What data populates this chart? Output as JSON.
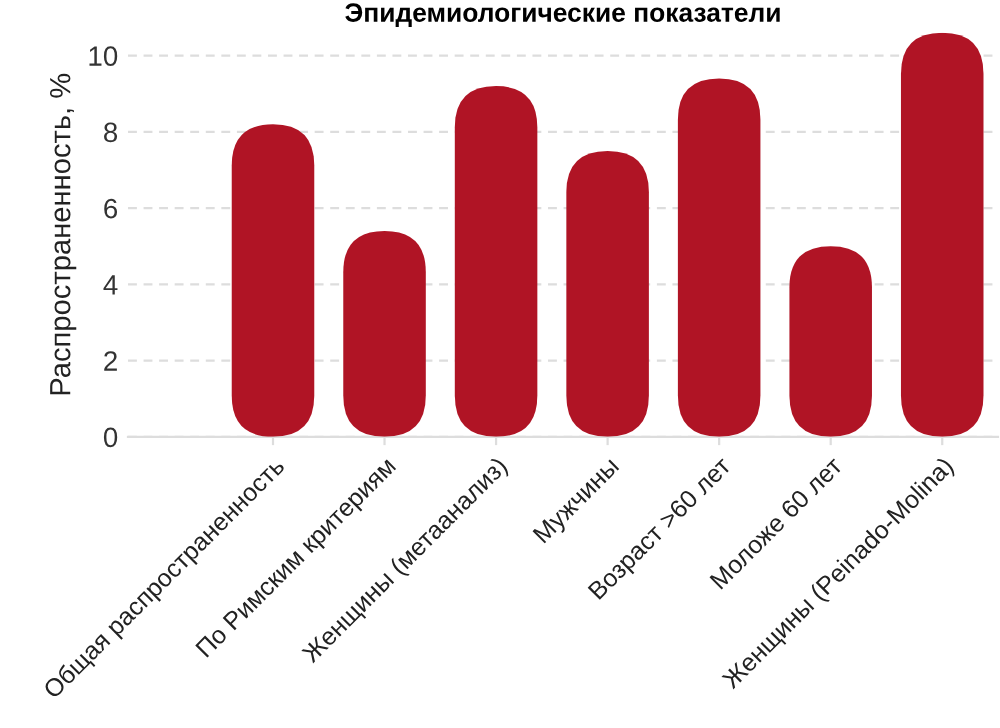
{
  "chart_data": {
    "type": "bar",
    "title": "Эпидемиологические показатели",
    "ylabel": "Распространенность, %",
    "categories": [
      "Общая распространенность",
      "По Римским критериям",
      "Женщины (метаанализ)",
      "Мужчины",
      "Возраст >60 лет",
      "Моложе 60 лет",
      "Женщины (Peinado-Molina)"
    ],
    "values": [
      8.2,
      5.4,
      9.2,
      7.5,
      9.4,
      5.0,
      10.6
    ],
    "color": "#b01425",
    "ylim": [
      0,
      10.6
    ],
    "yticks": [
      0,
      2,
      4,
      6,
      8,
      10
    ],
    "grid": "y"
  }
}
